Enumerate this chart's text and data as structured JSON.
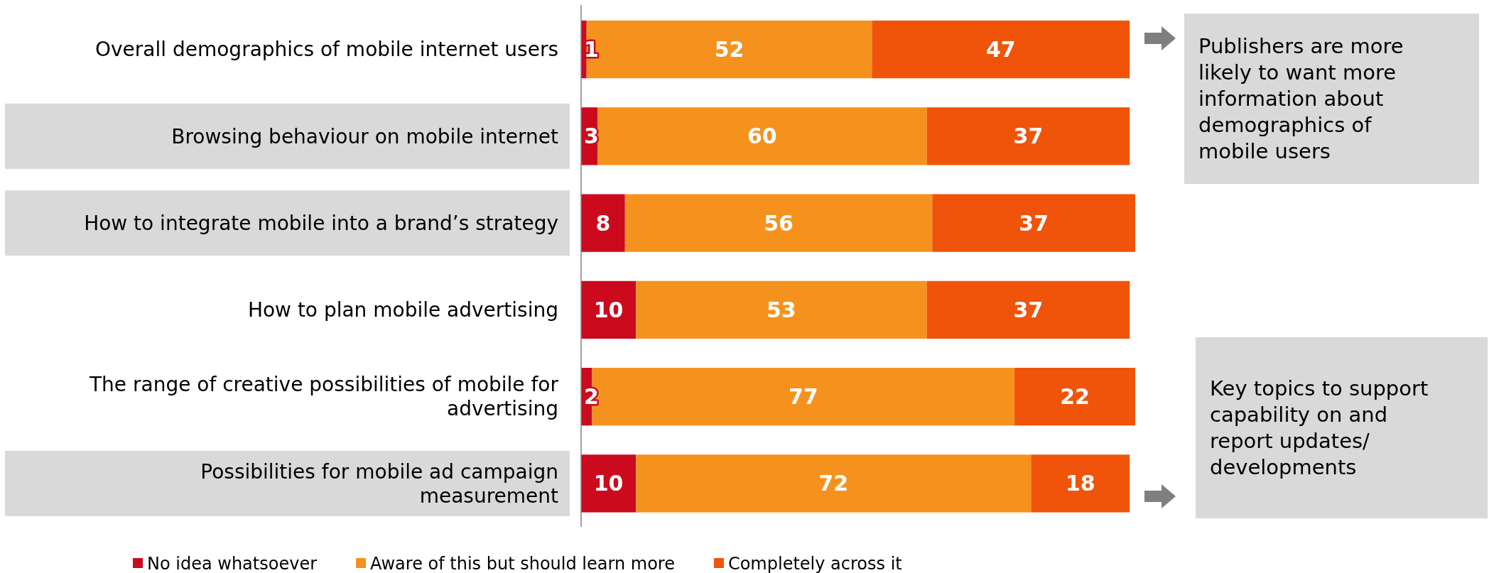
{
  "chart_data": {
    "type": "bar",
    "orientation": "horizontal",
    "stacked": true,
    "categories": [
      "Overall demographics of mobile internet users",
      "Browsing behaviour on mobile internet",
      "How to integrate mobile into a brand’s strategy",
      "How to plan mobile advertising",
      "The range of creative possibilities of mobile for advertising",
      "Possibilities for mobile ad campaign measurement"
    ],
    "series": [
      {
        "name": "No idea whatsoever",
        "color": "#cc0a1e",
        "values": [
          1,
          3,
          8,
          10,
          2,
          10
        ]
      },
      {
        "name": "Aware of this but should learn more",
        "color": "#f5921e",
        "values": [
          52,
          60,
          56,
          53,
          77,
          72
        ]
      },
      {
        "name": "Completely across it",
        "color": "#ef540a",
        "values": [
          47,
          37,
          37,
          37,
          22,
          18
        ]
      }
    ],
    "xlim": [
      0,
      101
    ],
    "data_labels": true,
    "legend": "bottom",
    "tick_labels": "y",
    "annotations": [
      "Publishers are more likely to want more information about demographics of mobile users",
      "Key topics to support capability on and report updates/ developments"
    ]
  }
}
